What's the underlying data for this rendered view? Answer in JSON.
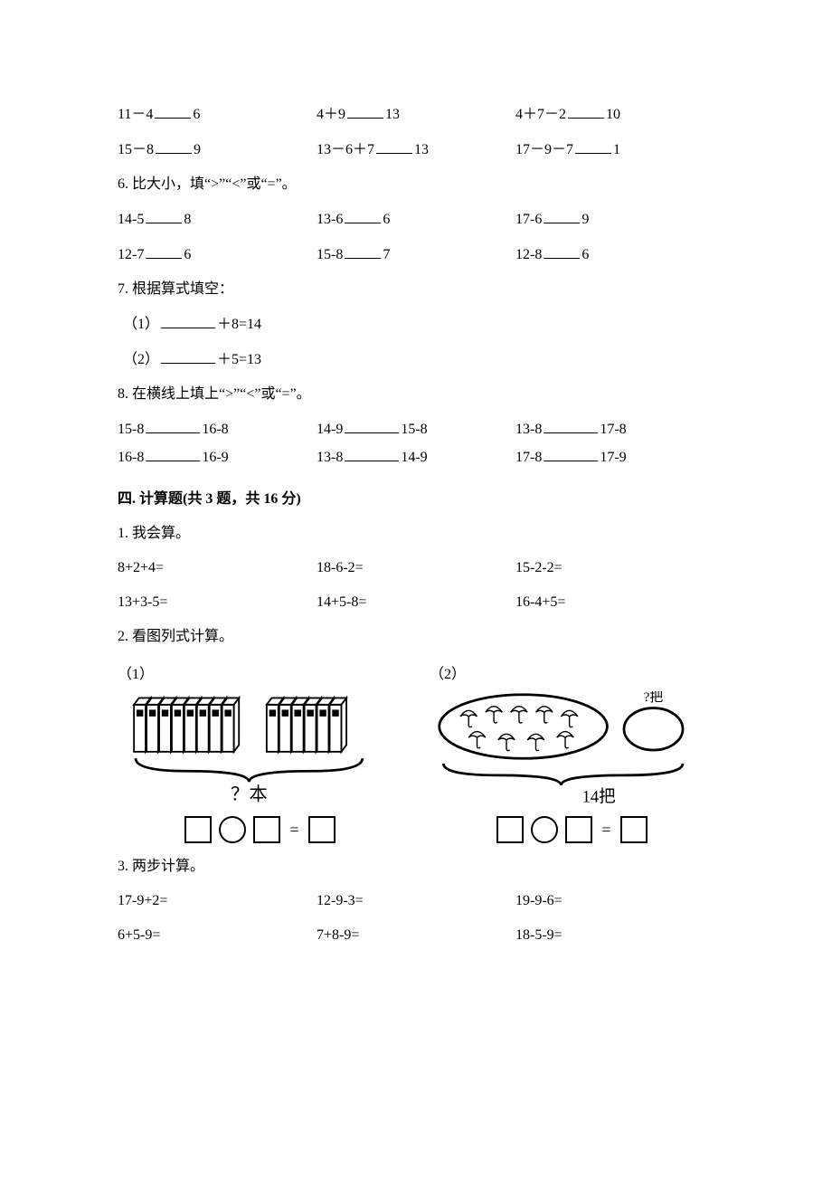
{
  "q5_rows": [
    [
      {
        "left": "11－4",
        "right": "6"
      },
      {
        "left": "4＋9",
        "right": "13"
      },
      {
        "left": "4＋7－2",
        "right": "10"
      }
    ],
    [
      {
        "left": "15－8",
        "right": "9"
      },
      {
        "left": "13－6＋7",
        "right": "13"
      },
      {
        "left": "17－9－7",
        "right": "1"
      }
    ]
  ],
  "q6": {
    "prompt": "6. 比大小，填“>”“<”或“=”。",
    "rows": [
      [
        {
          "left": "14-5",
          "right": "8"
        },
        {
          "left": "13-6",
          "right": "6"
        },
        {
          "left": "17-6",
          "right": "9"
        }
      ],
      [
        {
          "left": "12-7",
          "right": "6"
        },
        {
          "left": "15-8",
          "right": "7"
        },
        {
          "left": "12-8",
          "right": "6"
        }
      ]
    ]
  },
  "q7": {
    "prompt": "7. 根据算式填空：",
    "items": [
      {
        "label": "（1）",
        "tail": "＋8=14"
      },
      {
        "label": "（2）",
        "tail": "＋5=13"
      }
    ]
  },
  "q8": {
    "prompt": "8. 在横线上填上“>”“<”或“=”。",
    "rows": [
      [
        {
          "l": "15-8",
          "r": "16-8"
        },
        {
          "l": "14-9",
          "r": "15-8"
        },
        {
          "l": "13-8",
          "r": "17-8"
        }
      ],
      [
        {
          "l": "16-8",
          "r": "16-9"
        },
        {
          "l": "13-8",
          "r": "14-9"
        },
        {
          "l": "17-8",
          "r": "17-9"
        }
      ]
    ]
  },
  "section4": {
    "title": "四. 计算题(共 3 题，共 16 分)",
    "q1": {
      "prompt": "1. 我会算。",
      "rows": [
        [
          "8+2+4=",
          "18-6-2=",
          "15-2-2="
        ],
        [
          "13+3-5=",
          "14+5-8=",
          "16-4+5="
        ]
      ]
    },
    "q2": {
      "prompt": "2. 看图列式计算。",
      "sub1_label": "（1）",
      "sub2_label": "（2）",
      "books_caption": "？本",
      "umbrella_caption": "14把",
      "umbrella_side": "?把"
    },
    "q3": {
      "prompt": "3. 两步计算。",
      "rows": [
        [
          "17-9+2=",
          "12-9-3=",
          "19-9-6="
        ],
        [
          "6+5-9=",
          "7+8-9=",
          "18-5-9="
        ]
      ]
    }
  }
}
